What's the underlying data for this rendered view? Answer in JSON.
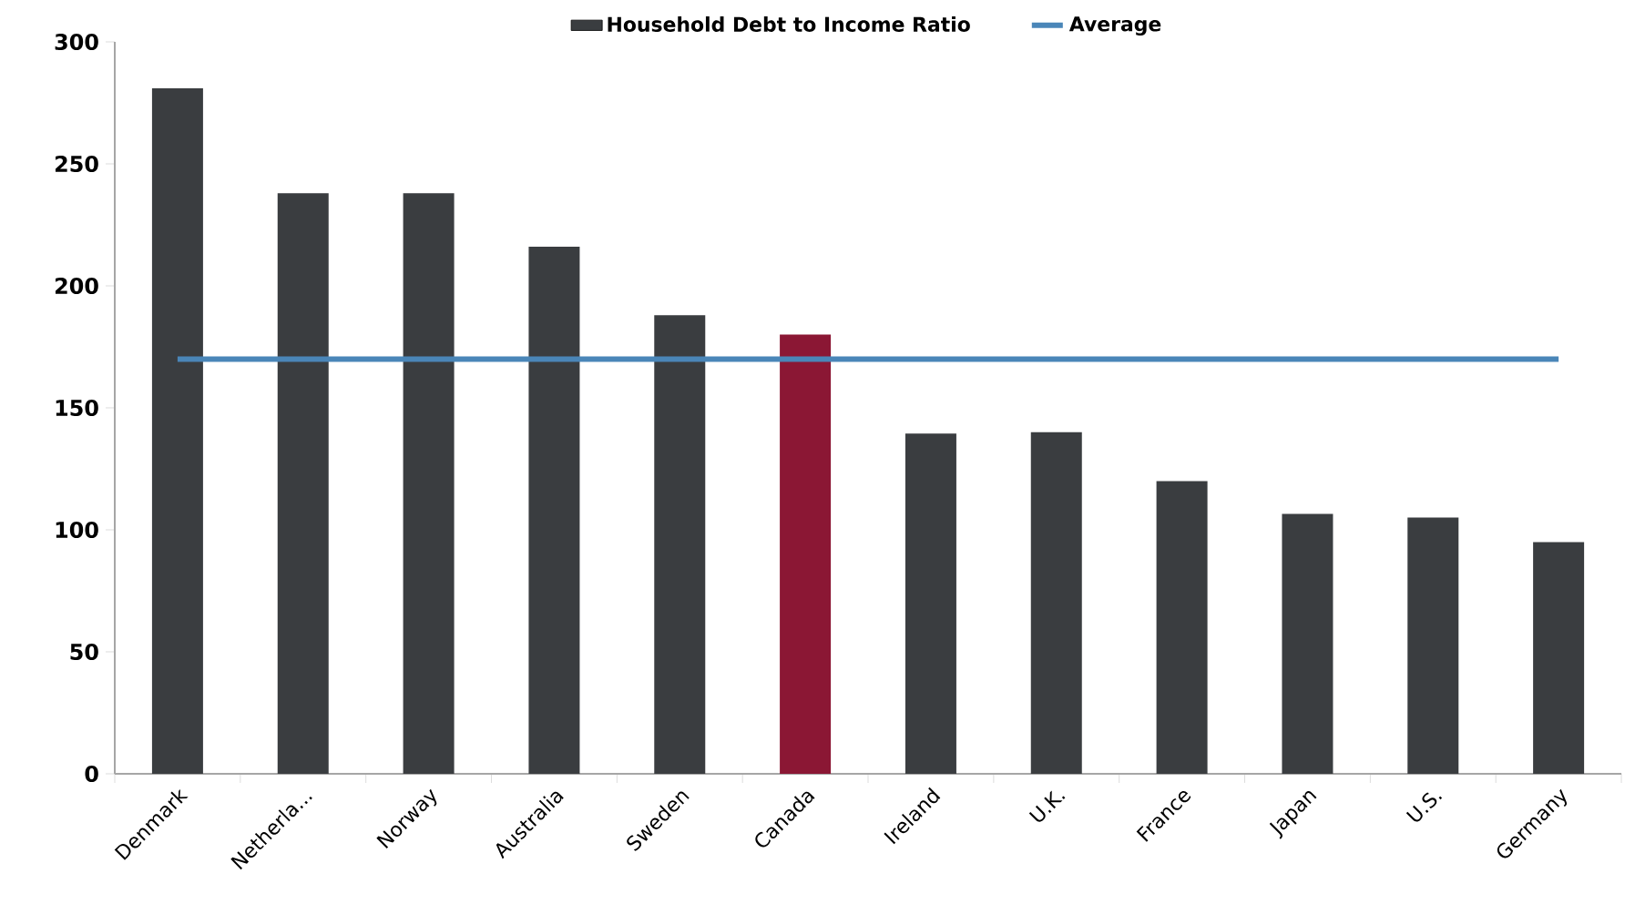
{
  "chart_data": {
    "type": "bar",
    "categories": [
      "Denmark",
      "Netherla...",
      "Norway",
      "Australia",
      "Sweden",
      "Canada",
      "Ireland",
      "U.K.",
      "France",
      "Japan",
      "U.S.",
      "Germany"
    ],
    "series": [
      {
        "name": "Household Debt to Income Ratio",
        "color": "#3a3d40",
        "values": [
          281,
          238,
          238,
          216,
          188,
          180,
          139.5,
          140,
          120,
          106.5,
          105,
          95
        ],
        "colors": [
          "#3a3d40",
          "#3a3d40",
          "#3a3d40",
          "#3a3d40",
          "#3a3d40",
          "#8b1734",
          "#3a3d40",
          "#3a3d40",
          "#3a3d40",
          "#3a3d40",
          "#3a3d40",
          "#3a3d40"
        ]
      },
      {
        "name": "Average",
        "type": "line",
        "color": "#4a86b8",
        "values": [
          170,
          170,
          170,
          170,
          170,
          170,
          170,
          170,
          170,
          170,
          170,
          170
        ]
      }
    ],
    "ylim": [
      0,
      300
    ],
    "yticks": [
      0,
      50,
      100,
      150,
      200,
      250,
      300
    ],
    "legend": "top"
  }
}
